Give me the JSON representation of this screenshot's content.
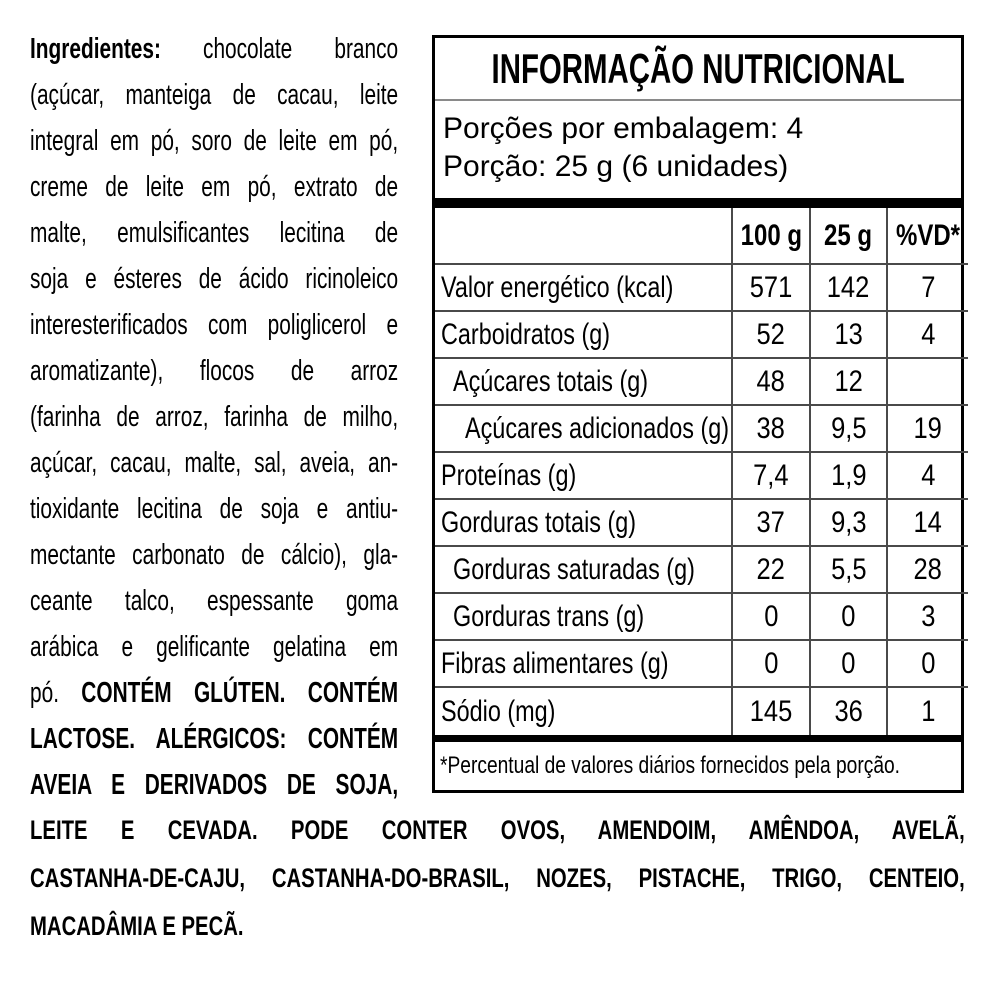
{
  "colors": {
    "background": "#ffffff",
    "text": "#000000",
    "table_border": "#000000",
    "row_line": "#4a4a4a",
    "title_rule": "#8a8a8a"
  },
  "ingredients": {
    "lines": [
      {
        "b1": "Ingredientes:",
        "t": " chocolate branco"
      },
      {
        "t": "(açúcar, manteiga de cacau, leite"
      },
      {
        "t": "integral em pó, soro de leite em pó,"
      },
      {
        "t": "creme de leite em pó, extrato de"
      },
      {
        "t": "malte, emulsificantes lecitina de"
      },
      {
        "t": "soja e ésteres de ácido ricinoleico"
      },
      {
        "t": "interesterificados com poliglicerol e"
      },
      {
        "t": "aromatizante), flocos de arroz"
      },
      {
        "t": "(farinha de arroz, farinha de milho,"
      },
      {
        "t": "açúcar, cacau, malte, sal, aveia, an-"
      },
      {
        "t": "tioxidante lecitina de soja e antiu-"
      },
      {
        "t": "mectante carbonato de cálcio), gla-"
      },
      {
        "t": "ceante talco, espessante goma"
      },
      {
        "t": "arábica e gelificante gelatina em"
      },
      {
        "t": "pó. ",
        "b2": "CONTÉM GLÚTEN. CONTÉM"
      },
      {
        "b1": "LACTOSE. ALÉRGICOS: CONTÉM"
      },
      {
        "b1": "AVEIA E DERIVADOS DE SOJA,"
      }
    ]
  },
  "allergens": {
    "lines": [
      "LEITE E CEVADA. PODE CONTER OVOS, AMENDOIM, AMÊNDOA, AVELÃ,",
      "CASTANHA-DE-CAJU, CASTANHA-DO-BRASIL, NOZES, PISTACHE, TRIGO, CENTEIO,",
      "MACADÂMIA E PECÃ."
    ]
  },
  "nutrition_table": {
    "title": "INFORMAÇÃO NUTRICIONAL",
    "servings_per_package": "Porções por embalagem: 4",
    "serving_size": "Porção: 25 g (6 unidades)",
    "columns": [
      "100 g",
      "25 g",
      "%VD*"
    ],
    "rows": [
      {
        "label": "Valor energético (kcal)",
        "indent": 0,
        "per100": "571",
        "per25": "142",
        "vd": "7"
      },
      {
        "label": "Carboidratos (g)",
        "indent": 0,
        "per100": "52",
        "per25": "13",
        "vd": "4"
      },
      {
        "label": "Açúcares totais (g)",
        "indent": 1,
        "per100": "48",
        "per25": "12",
        "vd": ""
      },
      {
        "label": "Açúcares adicionados (g)",
        "indent": 2,
        "per100": "38",
        "per25": "9,5",
        "vd": "19"
      },
      {
        "label": "Proteínas (g)",
        "indent": 0,
        "per100": "7,4",
        "per25": "1,9",
        "vd": "4"
      },
      {
        "label": "Gorduras totais (g)",
        "indent": 0,
        "per100": "37",
        "per25": "9,3",
        "vd": "14"
      },
      {
        "label": "Gorduras saturadas (g)",
        "indent": 1,
        "per100": "22",
        "per25": "5,5",
        "vd": "28"
      },
      {
        "label": "Gorduras trans (g)",
        "indent": 1,
        "per100": "0",
        "per25": "0",
        "vd": "3"
      },
      {
        "label": "Fibras alimentares (g)",
        "indent": 0,
        "per100": "0",
        "per25": "0",
        "vd": "0"
      },
      {
        "label": "Sódio (mg)",
        "indent": 0,
        "per100": "145",
        "per25": "36",
        "vd": "1"
      }
    ],
    "footnote": "*Percentual de valores diários fornecidos pela porção."
  }
}
